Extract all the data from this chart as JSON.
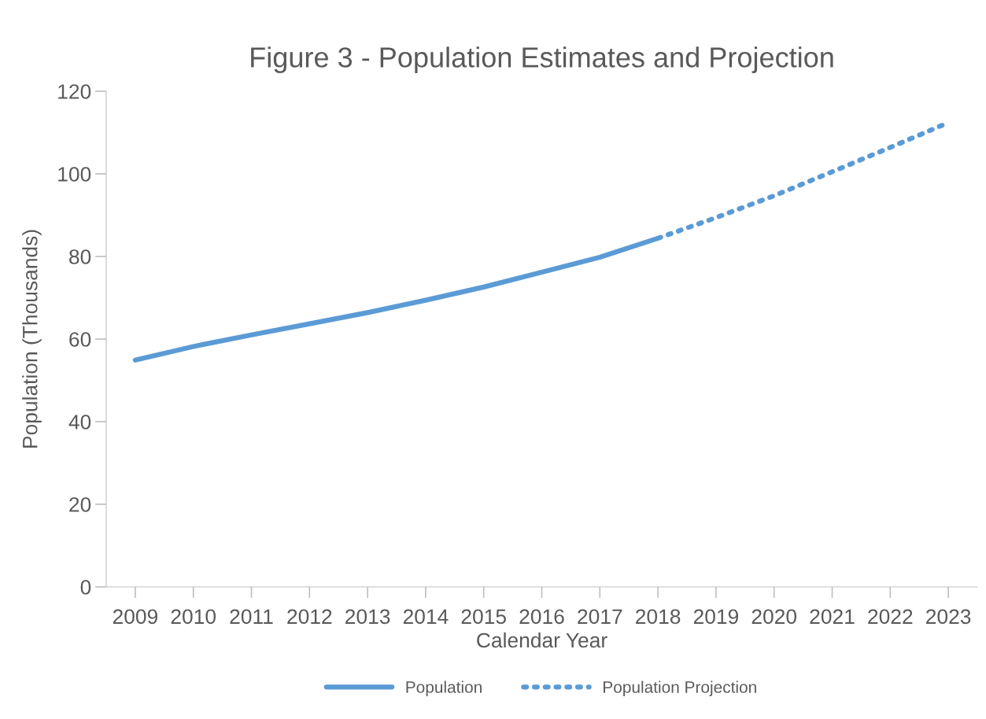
{
  "chart_data": {
    "type": "line",
    "title": "Figure 3 - Population Estimates and Projection",
    "xlabel": "Calendar Year",
    "ylabel": "Population (Thousands)",
    "categories": [
      "2009",
      "2010",
      "2011",
      "2012",
      "2013",
      "2014",
      "2015",
      "2016",
      "2017",
      "2018",
      "2019",
      "2020",
      "2021",
      "2022",
      "2023"
    ],
    "ylim": [
      0,
      120
    ],
    "yticks": [
      0,
      20,
      40,
      60,
      80,
      100,
      120
    ],
    "grid": false,
    "legend": "bottom",
    "series": [
      {
        "name": "Population",
        "color": "#5b9bd5",
        "line_style": "solid",
        "values": [
          54.9,
          58.2,
          61.0,
          63.7,
          66.4,
          69.4,
          72.6,
          76.2,
          79.8,
          84.4,
          null,
          null,
          null,
          null,
          null
        ]
      },
      {
        "name": "Population Projection",
        "color": "#5b9bd5",
        "line_style": "dotted",
        "values": [
          null,
          null,
          null,
          null,
          null,
          null,
          null,
          null,
          null,
          84.4,
          89.4,
          94.7,
          100.5,
          106.4,
          112.4
        ]
      }
    ]
  }
}
